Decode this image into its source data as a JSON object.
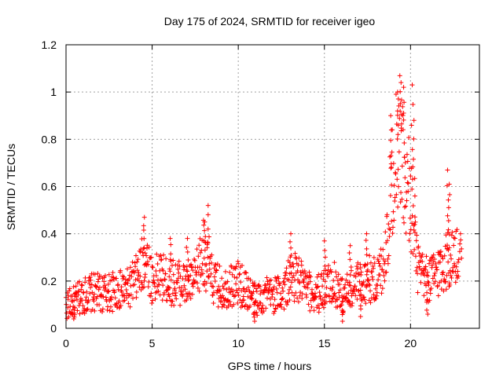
{
  "chart_data": {
    "type": "scatter",
    "title": "Day 175 of 2024, SRMTID for receiver igeo",
    "xlabel": "GPS time / hours",
    "ylabel": "SRMTID / TECUs",
    "xlim": [
      0,
      24
    ],
    "ylim": [
      0,
      1.2
    ],
    "x_ticks": [
      0,
      5,
      10,
      15,
      20
    ],
    "x_tick_labels": [
      "0",
      "5",
      "10",
      "15",
      "20"
    ],
    "y_ticks": [
      0,
      0.2,
      0.4,
      0.6,
      0.8,
      1.0,
      1.2
    ],
    "y_tick_labels": [
      "0",
      "0.2",
      "0.4",
      "0.6",
      "0.8",
      "1",
      "1.2"
    ],
    "grid": true,
    "marker": "plus",
    "color": "#ff0000",
    "series": [
      {
        "name": "SRMTID",
        "trend": {
          "x": [
            0.0,
            0.5,
            1.0,
            1.5,
            2.0,
            2.5,
            3.0,
            3.5,
            4.0,
            4.3,
            4.6,
            4.8,
            5.0,
            5.5,
            6.0,
            6.5,
            7.0,
            7.5,
            7.8,
            8.0,
            8.2,
            8.5,
            9.0,
            9.5,
            10.0,
            10.5,
            11.0,
            11.5,
            12.0,
            12.5,
            13.0,
            13.3,
            13.7,
            14.0,
            14.5,
            15.0,
            15.5,
            16.0,
            16.5,
            17.0,
            17.5,
            18.0,
            18.3,
            18.6,
            18.9,
            19.1,
            19.3,
            19.5,
            19.7,
            19.9,
            20.1,
            20.3,
            20.6,
            21.0,
            21.3,
            21.6,
            22.0,
            22.3,
            22.6,
            22.8
          ],
          "y": [
            0.1,
            0.11,
            0.14,
            0.15,
            0.15,
            0.15,
            0.16,
            0.16,
            0.2,
            0.24,
            0.3,
            0.27,
            0.2,
            0.22,
            0.19,
            0.2,
            0.18,
            0.2,
            0.28,
            0.33,
            0.26,
            0.2,
            0.17,
            0.18,
            0.19,
            0.16,
            0.12,
            0.14,
            0.14,
            0.15,
            0.2,
            0.22,
            0.19,
            0.16,
            0.14,
            0.17,
            0.2,
            0.14,
            0.16,
            0.19,
            0.21,
            0.2,
            0.25,
            0.35,
            0.6,
            0.75,
            0.8,
            0.78,
            0.55,
            0.6,
            0.5,
            0.3,
            0.22,
            0.2,
            0.22,
            0.24,
            0.28,
            0.3,
            0.3,
            0.28
          ]
        },
        "spikes": [
          {
            "x": 4.55,
            "y": 0.47
          },
          {
            "x": 6.05,
            "y": 0.38
          },
          {
            "x": 7.05,
            "y": 0.38
          },
          {
            "x": 8.05,
            "y": 0.45
          },
          {
            "x": 8.25,
            "y": 0.52
          },
          {
            "x": 13.05,
            "y": 0.4
          },
          {
            "x": 15.0,
            "y": 0.37
          },
          {
            "x": 16.5,
            "y": 0.35
          },
          {
            "x": 17.45,
            "y": 0.4
          },
          {
            "x": 18.85,
            "y": 0.9
          },
          {
            "x": 19.25,
            "y": 1.0
          },
          {
            "x": 19.45,
            "y": 1.04
          },
          {
            "x": 19.6,
            "y": 1.02
          },
          {
            "x": 20.1,
            "y": 1.03
          },
          {
            "x": 20.2,
            "y": 0.88
          },
          {
            "x": 22.15,
            "y": 0.67
          },
          {
            "x": 22.25,
            "y": 0.61
          },
          {
            "x": 22.9,
            "y": 0.4
          }
        ],
        "dips": [
          {
            "x": 0.45,
            "y": 0.04
          },
          {
            "x": 10.95,
            "y": 0.03
          },
          {
            "x": 16.05,
            "y": 0.03
          },
          {
            "x": 17.1,
            "y": 0.05
          },
          {
            "x": 21.0,
            "y": 0.06
          }
        ]
      }
    ]
  }
}
